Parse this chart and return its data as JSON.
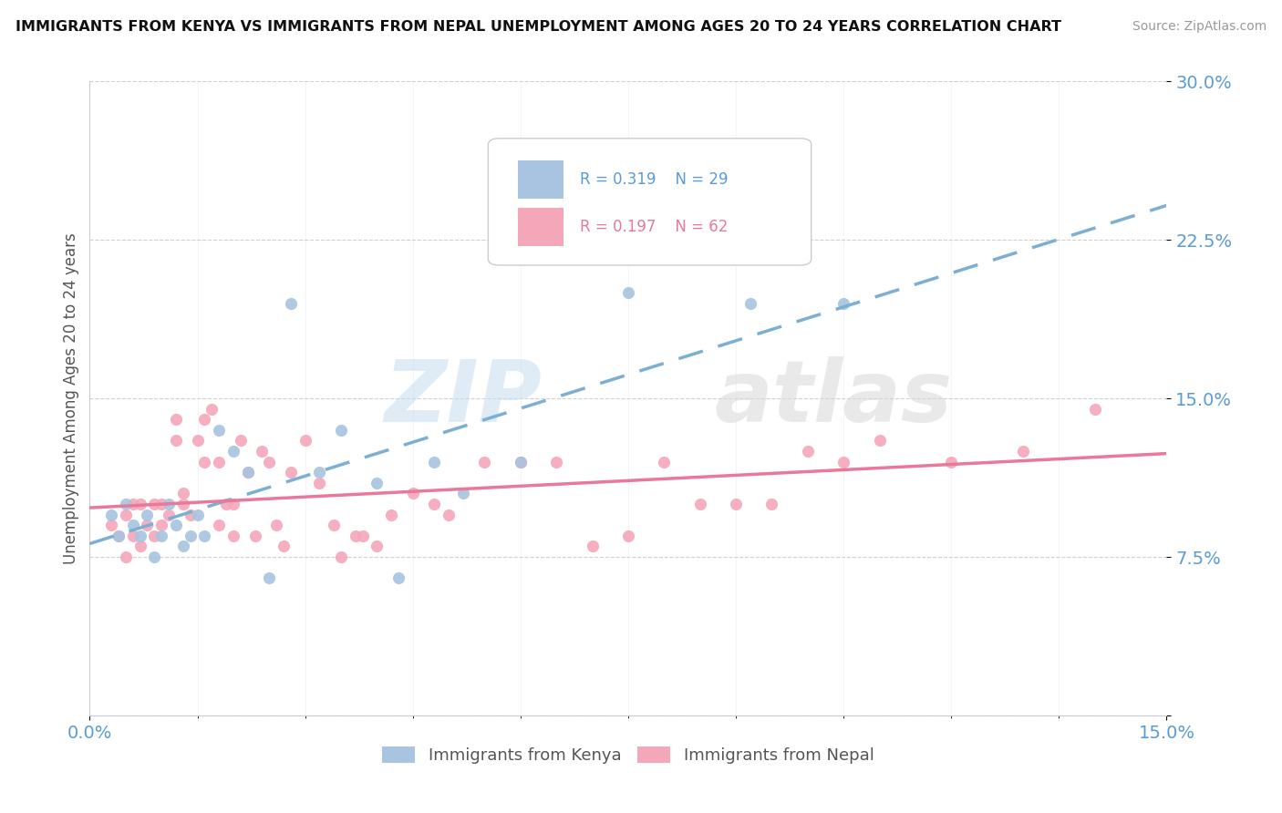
{
  "title": "IMMIGRANTS FROM KENYA VS IMMIGRANTS FROM NEPAL UNEMPLOYMENT AMONG AGES 20 TO 24 YEARS CORRELATION CHART",
  "source": "Source: ZipAtlas.com",
  "ylabel": "Unemployment Among Ages 20 to 24 years",
  "xlim": [
    0.0,
    0.15
  ],
  "ylim": [
    0.0,
    0.3
  ],
  "yticks": [
    0.0,
    0.075,
    0.15,
    0.225,
    0.3
  ],
  "ytick_labels": [
    "",
    "7.5%",
    "15.0%",
    "22.5%",
    "30.0%"
  ],
  "xtick_labels": [
    "0.0%",
    "15.0%"
  ],
  "kenya_R": 0.319,
  "kenya_N": 29,
  "nepal_R": 0.197,
  "nepal_N": 62,
  "kenya_color": "#a8c4e0",
  "nepal_color": "#f4a7b9",
  "kenya_line_color": "#7bafd4",
  "nepal_line_color": "#e8799a",
  "background_color": "#ffffff",
  "kenya_x": [
    0.003,
    0.004,
    0.005,
    0.006,
    0.007,
    0.008,
    0.009,
    0.01,
    0.011,
    0.012,
    0.013,
    0.014,
    0.015,
    0.016,
    0.018,
    0.02,
    0.022,
    0.025,
    0.028,
    0.032,
    0.035,
    0.04,
    0.043,
    0.048,
    0.052,
    0.06,
    0.075,
    0.092,
    0.105
  ],
  "kenya_y": [
    0.095,
    0.085,
    0.1,
    0.09,
    0.085,
    0.095,
    0.075,
    0.085,
    0.1,
    0.09,
    0.08,
    0.085,
    0.095,
    0.085,
    0.135,
    0.125,
    0.115,
    0.065,
    0.195,
    0.115,
    0.135,
    0.11,
    0.065,
    0.12,
    0.105,
    0.12,
    0.2,
    0.195,
    0.195
  ],
  "nepal_x": [
    0.003,
    0.004,
    0.005,
    0.005,
    0.006,
    0.006,
    0.007,
    0.007,
    0.008,
    0.009,
    0.009,
    0.01,
    0.01,
    0.011,
    0.012,
    0.012,
    0.013,
    0.013,
    0.014,
    0.015,
    0.016,
    0.016,
    0.017,
    0.018,
    0.018,
    0.019,
    0.02,
    0.02,
    0.021,
    0.022,
    0.023,
    0.024,
    0.025,
    0.026,
    0.027,
    0.028,
    0.03,
    0.032,
    0.034,
    0.035,
    0.037,
    0.038,
    0.04,
    0.042,
    0.045,
    0.048,
    0.05,
    0.055,
    0.06,
    0.065,
    0.07,
    0.075,
    0.08,
    0.085,
    0.09,
    0.095,
    0.1,
    0.105,
    0.11,
    0.12,
    0.13,
    0.14
  ],
  "nepal_y": [
    0.09,
    0.085,
    0.075,
    0.095,
    0.085,
    0.1,
    0.08,
    0.1,
    0.09,
    0.085,
    0.1,
    0.09,
    0.1,
    0.095,
    0.13,
    0.14,
    0.1,
    0.105,
    0.095,
    0.13,
    0.12,
    0.14,
    0.145,
    0.12,
    0.09,
    0.1,
    0.085,
    0.1,
    0.13,
    0.115,
    0.085,
    0.125,
    0.12,
    0.09,
    0.08,
    0.115,
    0.13,
    0.11,
    0.09,
    0.075,
    0.085,
    0.085,
    0.08,
    0.095,
    0.105,
    0.1,
    0.095,
    0.12,
    0.12,
    0.12,
    0.08,
    0.085,
    0.12,
    0.1,
    0.1,
    0.1,
    0.125,
    0.12,
    0.13,
    0.12,
    0.125,
    0.145
  ]
}
